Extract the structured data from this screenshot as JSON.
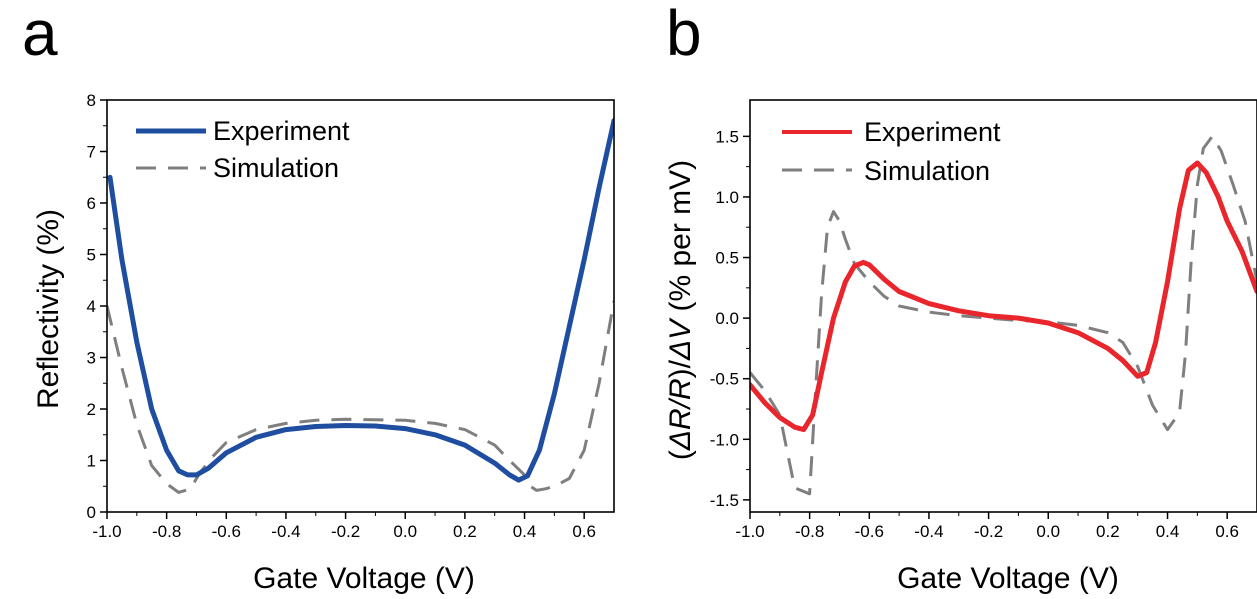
{
  "panels": [
    {
      "letter": "a",
      "chart_data": {
        "type": "line",
        "title": "",
        "xlabel": "Gate Voltage (V)",
        "ylabel": "Reflectivity (%)",
        "xlim": [
          -1.0,
          0.7
        ],
        "ylim": [
          0,
          8
        ],
        "xticks": [
          "-1.0",
          "-0.8",
          "-0.6",
          "-0.4",
          "-0.2",
          "0.0",
          "0.2",
          "0.4",
          "0.6"
        ],
        "xtick_values": [
          -1.0,
          -0.8,
          -0.6,
          -0.4,
          -0.2,
          0.0,
          0.2,
          0.4,
          0.6
        ],
        "yticks": [
          "0",
          "1",
          "2",
          "3",
          "4",
          "5",
          "6",
          "7",
          "8"
        ],
        "ytick_values": [
          0,
          1,
          2,
          3,
          4,
          5,
          6,
          7,
          8
        ],
        "legend_position": "top-left",
        "grid": false,
        "series": [
          {
            "name": "Experiment",
            "color": "#1f4ea1",
            "style": "solid",
            "x": [
              -0.99,
              -0.95,
              -0.9,
              -0.85,
              -0.8,
              -0.76,
              -0.73,
              -0.7,
              -0.66,
              -0.6,
              -0.5,
              -0.4,
              -0.3,
              -0.2,
              -0.1,
              0.0,
              0.1,
              0.2,
              0.3,
              0.35,
              0.38,
              0.41,
              0.45,
              0.5,
              0.55,
              0.6,
              0.65,
              0.7
            ],
            "y": [
              6.5,
              4.9,
              3.3,
              2.0,
              1.2,
              0.8,
              0.72,
              0.72,
              0.85,
              1.15,
              1.45,
              1.6,
              1.66,
              1.68,
              1.67,
              1.62,
              1.5,
              1.3,
              0.95,
              0.72,
              0.62,
              0.7,
              1.2,
              2.3,
              3.6,
              4.9,
              6.3,
              7.6
            ]
          },
          {
            "name": "Simulation",
            "color": "#7f7f7f",
            "style": "dashed",
            "x": [
              -1.0,
              -0.95,
              -0.9,
              -0.85,
              -0.8,
              -0.76,
              -0.72,
              -0.69,
              -0.65,
              -0.6,
              -0.5,
              -0.4,
              -0.3,
              -0.2,
              -0.1,
              0.0,
              0.1,
              0.2,
              0.3,
              0.35,
              0.4,
              0.42,
              0.44,
              0.47,
              0.5,
              0.55,
              0.6,
              0.65,
              0.7
            ],
            "y": [
              4.0,
              2.8,
              1.7,
              0.9,
              0.55,
              0.38,
              0.45,
              0.75,
              1.05,
              1.35,
              1.6,
              1.72,
              1.78,
              1.8,
              1.79,
              1.78,
              1.72,
              1.6,
              1.3,
              1.0,
              0.72,
              0.5,
              0.42,
              0.45,
              0.5,
              0.65,
              1.2,
              2.5,
              4.1
            ]
          }
        ]
      }
    },
    {
      "letter": "b",
      "chart_data": {
        "type": "line",
        "title": "",
        "xlabel": "Gate Voltage (V)",
        "ylabel": "(ΔR/R)/ΔV (% per mV)",
        "ylabel_parts": [
          "(",
          "ΔR/R",
          ")/",
          "ΔV",
          " (% per mV)"
        ],
        "xlim": [
          -1.0,
          0.7
        ],
        "ylim": [
          -1.6,
          1.8
        ],
        "xticks": [
          "-1.0",
          "-0.8",
          "-0.6",
          "-0.4",
          "-0.2",
          "0.0",
          "0.2",
          "0.4",
          "0.6"
        ],
        "xtick_values": [
          -1.0,
          -0.8,
          -0.6,
          -0.4,
          -0.2,
          0.0,
          0.2,
          0.4,
          0.6
        ],
        "yticks": [
          "-1.5",
          "-1.0",
          "-0.5",
          "0.0",
          "0.5",
          "1.0",
          "1.5"
        ],
        "ytick_values": [
          -1.5,
          -1.0,
          -0.5,
          0.0,
          0.5,
          1.0,
          1.5
        ],
        "legend_position": "top-left",
        "grid": false,
        "series": [
          {
            "name": "Experiment",
            "color": "#e8262b",
            "style": "solid",
            "x": [
              -1.0,
              -0.95,
              -0.9,
              -0.85,
              -0.82,
              -0.79,
              -0.76,
              -0.72,
              -0.68,
              -0.65,
              -0.62,
              -0.6,
              -0.55,
              -0.5,
              -0.4,
              -0.3,
              -0.2,
              -0.1,
              0.0,
              0.1,
              0.2,
              0.25,
              0.3,
              0.33,
              0.36,
              0.4,
              0.44,
              0.47,
              0.5,
              0.53,
              0.57,
              0.6,
              0.65,
              0.7
            ],
            "y": [
              -0.55,
              -0.7,
              -0.82,
              -0.9,
              -0.92,
              -0.8,
              -0.45,
              0.0,
              0.3,
              0.43,
              0.46,
              0.44,
              0.32,
              0.22,
              0.12,
              0.06,
              0.02,
              0.0,
              -0.04,
              -0.12,
              -0.25,
              -0.35,
              -0.48,
              -0.45,
              -0.2,
              0.3,
              0.9,
              1.22,
              1.28,
              1.2,
              1.0,
              0.8,
              0.55,
              0.22
            ]
          },
          {
            "name": "Simulation",
            "color": "#7f7f7f",
            "style": "dashed",
            "x": [
              -1.0,
              -0.95,
              -0.9,
              -0.85,
              -0.8,
              -0.78,
              -0.76,
              -0.74,
              -0.72,
              -0.7,
              -0.68,
              -0.65,
              -0.6,
              -0.55,
              -0.5,
              -0.4,
              -0.3,
              -0.2,
              -0.1,
              0.0,
              0.1,
              0.2,
              0.25,
              0.3,
              0.35,
              0.4,
              0.44,
              0.46,
              0.48,
              0.5,
              0.52,
              0.55,
              0.58,
              0.62,
              0.66,
              0.7
            ],
            "y": [
              -0.45,
              -0.6,
              -0.8,
              -1.4,
              -1.45,
              -0.6,
              0.2,
              0.75,
              0.88,
              0.8,
              0.65,
              0.45,
              0.3,
              0.18,
              0.1,
              0.05,
              0.02,
              0.0,
              -0.02,
              -0.03,
              -0.06,
              -0.12,
              -0.2,
              -0.4,
              -0.72,
              -0.92,
              -0.78,
              -0.3,
              0.5,
              1.1,
              1.4,
              1.5,
              1.38,
              1.1,
              0.8,
              0.3
            ]
          }
        ]
      }
    }
  ]
}
